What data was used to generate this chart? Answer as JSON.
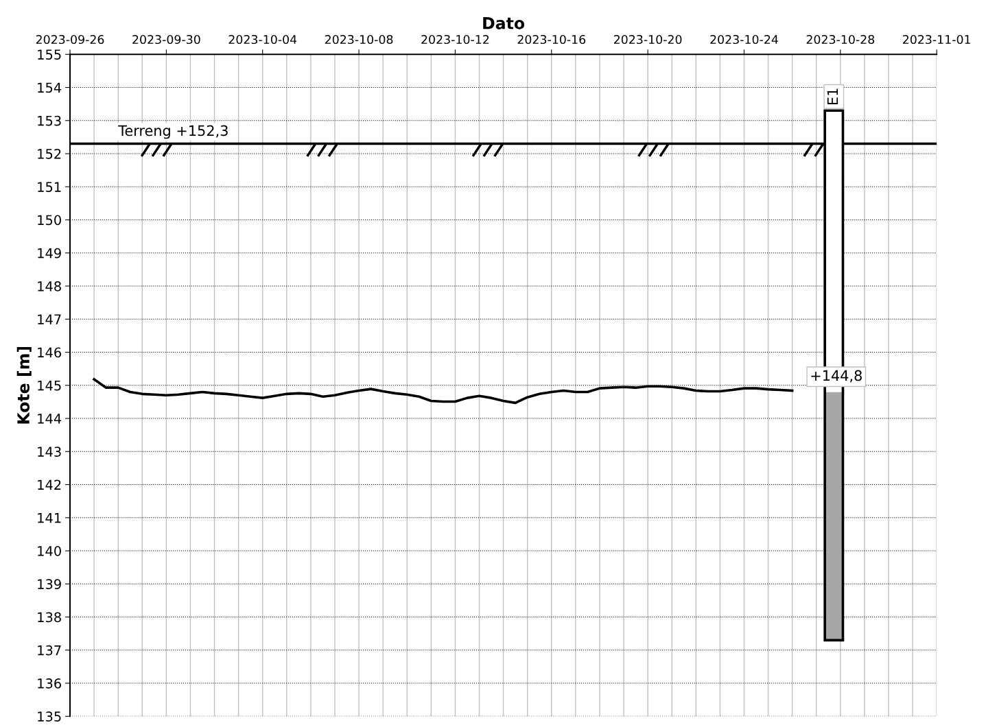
{
  "chart_data": {
    "type": "line",
    "xlabel": "Dato",
    "ylabel": "Kote [m]",
    "xlim": [
      "2023-09-26",
      "2023-11-01"
    ],
    "xticks": [
      "2023-09-26",
      "2023-09-30",
      "2023-10-04",
      "2023-10-08",
      "2023-10-12",
      "2023-10-16",
      "2023-10-20",
      "2023-10-24",
      "2023-10-28",
      "2023-11-01"
    ],
    "ylim": [
      135,
      155
    ],
    "yticks": [
      135,
      136,
      137,
      138,
      139,
      140,
      141,
      142,
      143,
      144,
      145,
      146,
      147,
      148,
      149,
      150,
      151,
      152,
      153,
      154,
      155
    ],
    "grid": true,
    "marker": "none",
    "line_style": "solid",
    "series": [
      {
        "color": "#000000",
        "x": [
          "2023-09-27T00:00",
          "2023-09-27T12:00",
          "2023-09-28T00:00",
          "2023-09-28T12:00",
          "2023-09-29T00:00",
          "2023-09-29T12:00",
          "2023-09-30T00:00",
          "2023-09-30T12:00",
          "2023-10-01T00:00",
          "2023-10-01T12:00",
          "2023-10-02T00:00",
          "2023-10-02T12:00",
          "2023-10-03T00:00",
          "2023-10-03T12:00",
          "2023-10-04T00:00",
          "2023-10-04T12:00",
          "2023-10-05T00:00",
          "2023-10-05T12:00",
          "2023-10-06T00:00",
          "2023-10-06T12:00",
          "2023-10-07T00:00",
          "2023-10-07T12:00",
          "2023-10-08T00:00",
          "2023-10-08T12:00",
          "2023-10-09T00:00",
          "2023-10-09T12:00",
          "2023-10-10T00:00",
          "2023-10-10T12:00",
          "2023-10-11T00:00",
          "2023-10-11T12:00",
          "2023-10-12T00:00",
          "2023-10-12T12:00",
          "2023-10-13T00:00",
          "2023-10-13T12:00",
          "2023-10-14T00:00",
          "2023-10-14T12:00",
          "2023-10-15T00:00",
          "2023-10-15T12:00",
          "2023-10-16T00:00",
          "2023-10-16T12:00",
          "2023-10-17T00:00",
          "2023-10-17T12:00",
          "2023-10-18T00:00",
          "2023-10-18T12:00",
          "2023-10-19T00:00",
          "2023-10-19T12:00",
          "2023-10-20T00:00",
          "2023-10-20T12:00",
          "2023-10-21T00:00",
          "2023-10-21T12:00",
          "2023-10-22T00:00",
          "2023-10-22T12:00",
          "2023-10-23T00:00",
          "2023-10-23T12:00",
          "2023-10-24T00:00",
          "2023-10-24T12:00",
          "2023-10-25T00:00",
          "2023-10-25T12:00",
          "2023-10-26T00:00"
        ],
        "values": [
          145.18,
          144.93,
          144.93,
          144.8,
          144.74,
          144.72,
          144.7,
          144.72,
          144.76,
          144.8,
          144.76,
          144.74,
          144.7,
          144.66,
          144.62,
          144.68,
          144.74,
          144.76,
          144.74,
          144.66,
          144.7,
          144.78,
          144.84,
          144.89,
          144.82,
          144.76,
          144.72,
          144.66,
          144.53,
          144.51,
          144.51,
          144.62,
          144.68,
          144.62,
          144.53,
          144.47,
          144.64,
          144.74,
          144.8,
          144.84,
          144.8,
          144.8,
          144.91,
          144.93,
          144.95,
          144.93,
          144.97,
          144.97,
          144.95,
          144.91,
          144.84,
          144.82,
          144.82,
          144.86,
          144.91,
          144.91,
          144.88,
          144.86,
          144.84
        ]
      },
      {
        "type": "bar",
        "color": "#a6a6a6",
        "x": [
          "2023-10-27T17:30"
        ],
        "base": [
          137.3
        ],
        "values": [
          7.5
        ]
      },
      {
        "type": "bar",
        "color": "#ffffff",
        "x": [
          "2023-10-27T17:30"
        ],
        "base": [
          144.8
        ],
        "values": [
          8.5
        ]
      }
    ],
    "ref_lines": [
      {
        "axis": "y",
        "value": 152.3,
        "label": "Terreng +152,3",
        "color": "#000000",
        "line_style": "solid"
      }
    ],
    "annotations": [
      {
        "text": "E1",
        "x": "2023-10-27T17:30",
        "y": 153.3
      },
      {
        "text": "+144,8",
        "x": "2023-10-27T17:30",
        "y": 144.8
      }
    ]
  }
}
